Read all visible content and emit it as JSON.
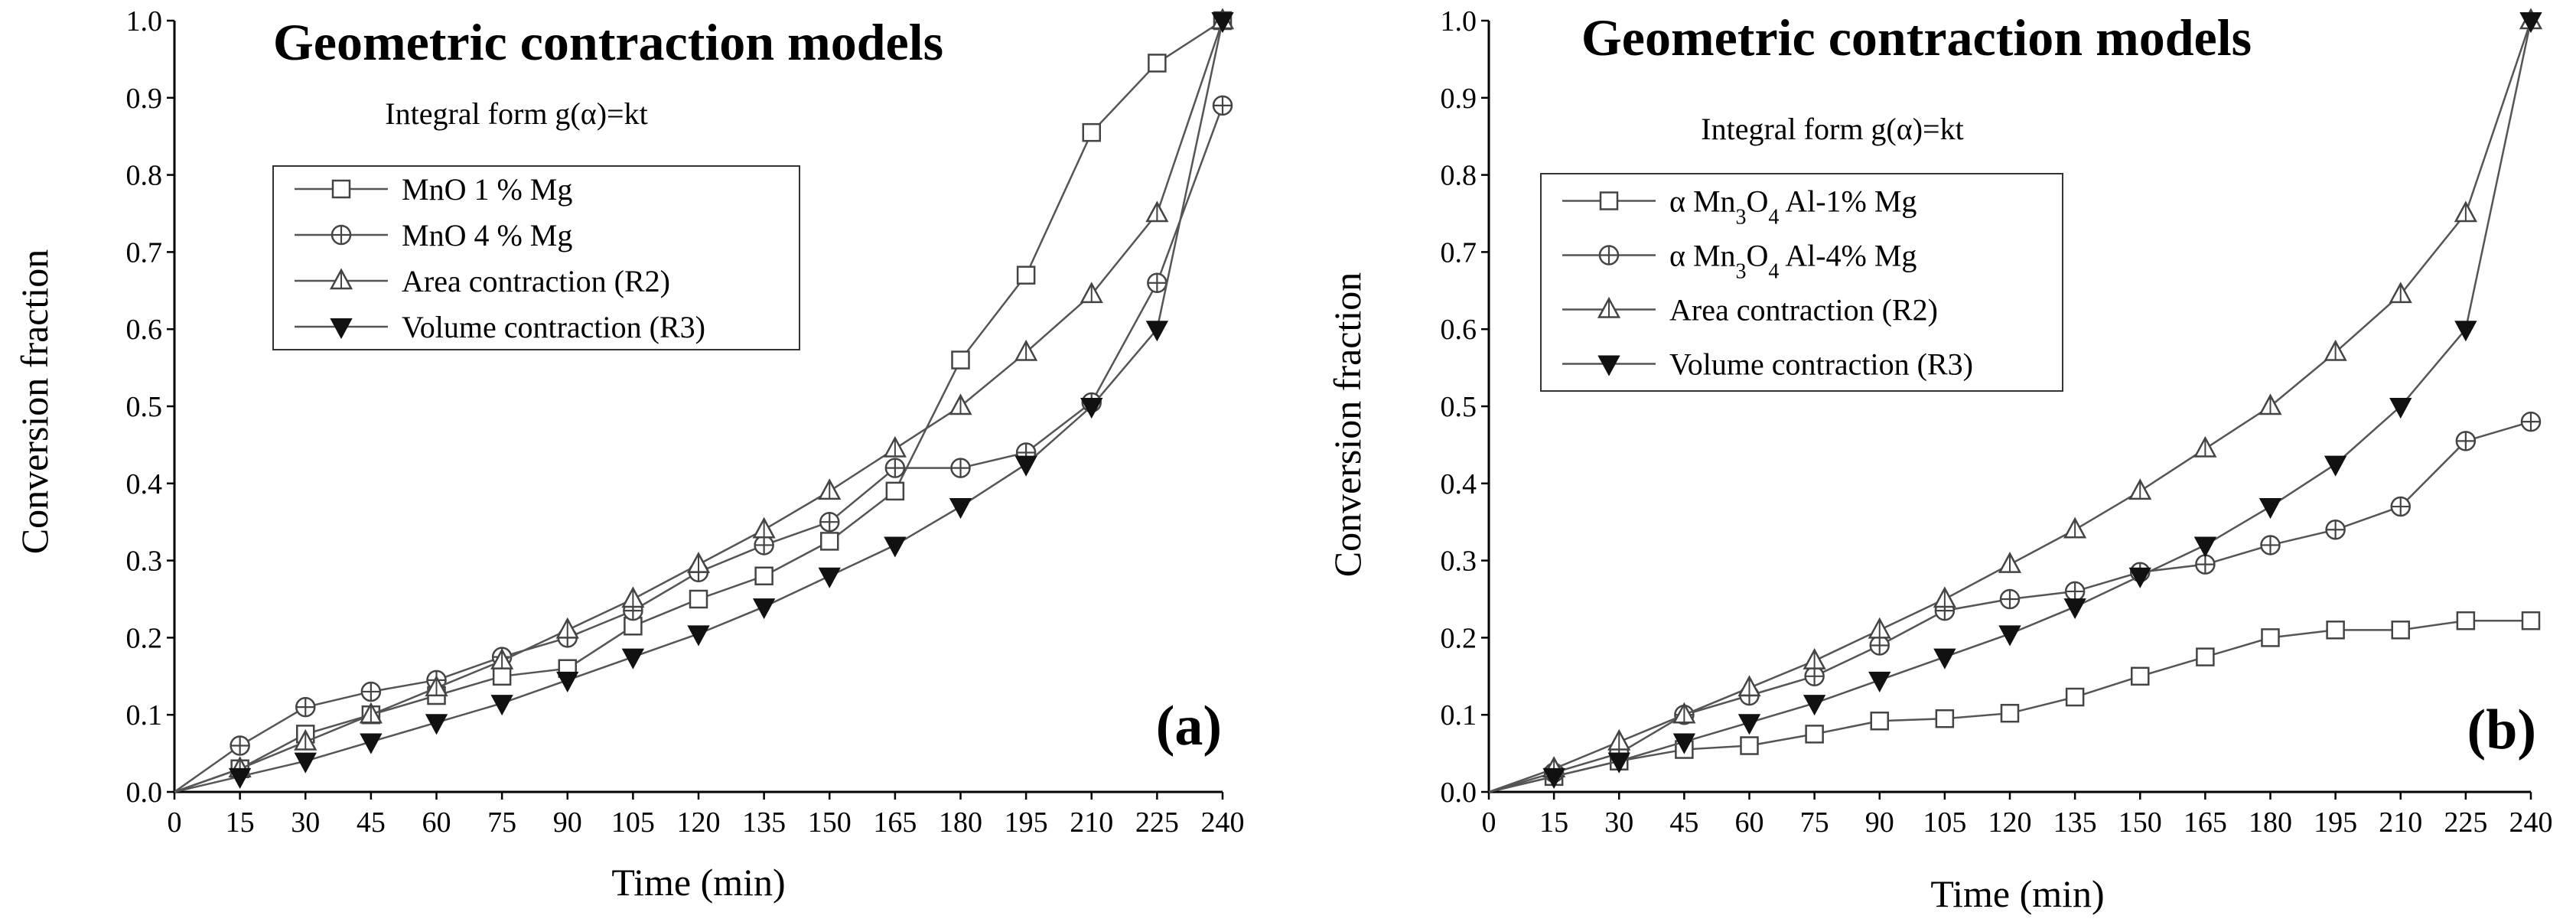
{
  "chart_data": [
    {
      "type": "line",
      "title": "Geometric contraction models",
      "subtitle": "Integral form g(α)=kt",
      "panel_label": "(a)",
      "xlabel": "Time (min)",
      "ylabel": "Conversion fraction",
      "xlim": [
        0,
        240
      ],
      "ylim": [
        0,
        1.0
      ],
      "x": [
        0,
        15,
        30,
        45,
        60,
        75,
        90,
        105,
        120,
        135,
        150,
        165,
        180,
        195,
        210,
        225,
        240
      ],
      "x_ticks": [
        "0",
        "15",
        "30",
        "45",
        "60",
        "75",
        "90",
        "105",
        "120",
        "135",
        "150",
        "165",
        "180",
        "195",
        "210",
        "225",
        "240"
      ],
      "y_ticks": [
        "0.0",
        "0.1",
        "0.2",
        "0.3",
        "0.4",
        "0.5",
        "0.6",
        "0.7",
        "0.8",
        "0.9",
        "1.0"
      ],
      "legend_position": "upper-left",
      "series": [
        {
          "name": "MnO 1 % Mg",
          "marker": "square",
          "values": [
            0,
            0.03,
            0.075,
            0.1,
            0.125,
            0.15,
            0.16,
            0.215,
            0.25,
            0.28,
            0.325,
            0.39,
            0.56,
            0.67,
            0.855,
            0.945,
            1.0
          ]
        },
        {
          "name": "MnO 4 % Mg",
          "marker": "circle-plus",
          "values": [
            0,
            0.06,
            0.11,
            0.13,
            0.145,
            0.175,
            0.2,
            0.235,
            0.285,
            0.32,
            0.35,
            0.42,
            0.42,
            0.44,
            0.505,
            0.66,
            0.89
          ]
        },
        {
          "name": "Area contraction (R2)",
          "marker": "triangle-up",
          "values": [
            0,
            0.03,
            0.065,
            0.1,
            0.135,
            0.17,
            0.21,
            0.25,
            0.295,
            0.34,
            0.39,
            0.445,
            0.5,
            0.57,
            0.645,
            0.75,
            1.0
          ]
        },
        {
          "name": "Volume contraction (R3)",
          "marker": "triangle-down-filled",
          "values": [
            0,
            0.02,
            0.04,
            0.065,
            0.09,
            0.115,
            0.145,
            0.175,
            0.205,
            0.24,
            0.28,
            0.32,
            0.37,
            0.425,
            0.5,
            0.6,
            1.0
          ]
        }
      ]
    },
    {
      "type": "line",
      "title": "Geometric contraction models",
      "subtitle": "Integral form g(α)=kt",
      "panel_label": "(b)",
      "xlabel": "Time (min)",
      "ylabel": "Conversion fraction",
      "xlim": [
        0,
        240
      ],
      "ylim": [
        0,
        1.0
      ],
      "x": [
        0,
        15,
        30,
        45,
        60,
        75,
        90,
        105,
        120,
        135,
        150,
        165,
        180,
        195,
        210,
        225,
        240
      ],
      "x_ticks": [
        "0",
        "15",
        "30",
        "45",
        "60",
        "75",
        "90",
        "105",
        "120",
        "135",
        "150",
        "165",
        "180",
        "195",
        "210",
        "225",
        "240"
      ],
      "y_ticks": [
        "0.0",
        "0.1",
        "0.2",
        "0.3",
        "0.4",
        "0.5",
        "0.6",
        "0.7",
        "0.8",
        "0.9",
        "1.0"
      ],
      "legend_position": "upper-left",
      "series": [
        {
          "name": "α Mn3O4 Al-1% Mg",
          "legend": {
            "prefix": "α Mn",
            "sub1": "3",
            "mid": "O",
            "sub2": "4",
            "suffix": "  Al-1% Mg"
          },
          "marker": "square",
          "values": [
            0,
            0.02,
            0.04,
            0.055,
            0.06,
            0.075,
            0.092,
            0.095,
            0.102,
            0.123,
            0.15,
            0.175,
            0.2,
            0.21,
            0.21,
            0.222,
            0.222
          ]
        },
        {
          "name": "α Mn3O4 Al-4% Mg",
          "legend": {
            "prefix": "α Mn",
            "sub1": "3",
            "mid": "O",
            "sub2": "4",
            "suffix": "  Al-4% Mg"
          },
          "marker": "circle-plus",
          "values": [
            0,
            0.025,
            0.05,
            0.1,
            0.125,
            0.15,
            0.19,
            0.235,
            0.25,
            0.26,
            0.285,
            0.295,
            0.32,
            0.34,
            0.37,
            0.455,
            0.48
          ]
        },
        {
          "name": "Area contraction (R2)",
          "marker": "triangle-up",
          "values": [
            0,
            0.03,
            0.065,
            0.1,
            0.135,
            0.17,
            0.21,
            0.25,
            0.295,
            0.34,
            0.39,
            0.445,
            0.5,
            0.57,
            0.645,
            0.75,
            1.0
          ]
        },
        {
          "name": "Volume contraction (R3)",
          "marker": "triangle-down-filled",
          "values": [
            0,
            0.02,
            0.04,
            0.065,
            0.09,
            0.115,
            0.145,
            0.175,
            0.205,
            0.24,
            0.28,
            0.32,
            0.37,
            0.425,
            0.5,
            0.6,
            1.0
          ]
        }
      ]
    }
  ]
}
